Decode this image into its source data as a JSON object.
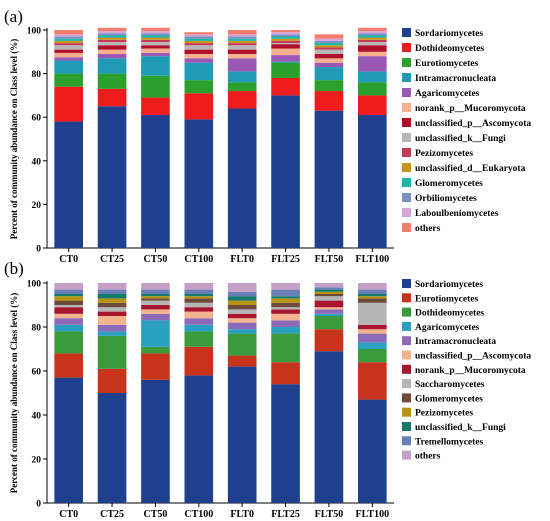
{
  "chart_data": [
    {
      "type": "bar",
      "stacked": true,
      "panel_label": "(a)",
      "ylabel": "Percent of community abundance on Class level (%)",
      "ylim": [
        0,
        100
      ],
      "yticks": [
        "0",
        "20",
        "40",
        "60",
        "80",
        "100"
      ],
      "categories": [
        "CT0",
        "CT25",
        "CT50",
        "CT100",
        "FLT0",
        "FLT25",
        "FLT50",
        "FLT100"
      ],
      "series": [
        {
          "name": "Sordariomycetes",
          "color": "#1f3f8f",
          "values": [
            58,
            65,
            61,
            59,
            64,
            70,
            63,
            61
          ]
        },
        {
          "name": "Dothideomycetes",
          "color": "#ee1c1c",
          "values": [
            16,
            8,
            8,
            12,
            8,
            8,
            9,
            9
          ]
        },
        {
          "name": "Eurotiomycetes",
          "color": "#2ca02c",
          "values": [
            6,
            7,
            10,
            6,
            4,
            7,
            5,
            6
          ]
        },
        {
          "name": "Intramacronucleata",
          "color": "#1f9bb5",
          "values": [
            6,
            7,
            9,
            8,
            5,
            0.5,
            6,
            5
          ]
        },
        {
          "name": "Agaricomycetes",
          "color": "#9b59b6",
          "values": [
            1.5,
            2,
            1.5,
            2,
            6,
            3,
            2,
            7
          ]
        },
        {
          "name": "norank_p__Mucoromycota",
          "color": "#f5b08f",
          "values": [
            2,
            2,
            2,
            2,
            2,
            3,
            2,
            2
          ]
        },
        {
          "name": "unclassified_p__Ascomycota",
          "color": "#b0102b",
          "values": [
            1.5,
            2,
            1.5,
            2,
            2,
            2,
            2,
            3
          ]
        },
        {
          "name": "unclassified_k__Fungi",
          "color": "#b7b7b7",
          "values": [
            2,
            1.5,
            1.5,
            2,
            2,
            0.5,
            2,
            1.5
          ]
        },
        {
          "name": "Pezizomycetes",
          "color": "#c53a5a",
          "values": [
            1,
            1,
            1,
            1,
            1,
            1,
            1,
            1
          ]
        },
        {
          "name": "unclassified_d__Eukaryota",
          "color": "#c9941c",
          "values": [
            1,
            1,
            1,
            1,
            1,
            1,
            1,
            1
          ]
        },
        {
          "name": "Glomeromycetes",
          "color": "#17b8a6",
          "values": [
            1,
            1,
            1,
            1,
            1,
            1,
            1,
            1
          ]
        },
        {
          "name": "Orbiliomycetes",
          "color": "#7d8fc4",
          "values": [
            1,
            1,
            1,
            1,
            1,
            1,
            1,
            1
          ]
        },
        {
          "name": "Laboulbeniomycetes",
          "color": "#d3a6d6",
          "values": [
            1,
            1,
            1,
            1,
            1,
            1,
            1,
            1
          ]
        },
        {
          "name": "others",
          "color": "#f47c6c",
          "values": [
            2,
            1.5,
            1.5,
            1,
            2,
            1,
            2,
            1.5
          ]
        }
      ]
    },
    {
      "type": "bar",
      "stacked": true,
      "panel_label": "(b)",
      "ylabel": "Percent of community abundance on Class level (%)",
      "ylim": [
        0,
        100
      ],
      "yticks": [
        "0",
        "20",
        "40",
        "60",
        "80",
        "100"
      ],
      "categories": [
        "CT0",
        "CT25",
        "CT50",
        "CT100",
        "FLT0",
        "FLT25",
        "FLT50",
        "FLT100"
      ],
      "series": [
        {
          "name": "Sordariomycetes",
          "color": "#1f3f8f",
          "values": [
            57,
            50,
            56,
            58,
            62,
            54,
            69,
            47
          ]
        },
        {
          "name": "Eurotiomycetes",
          "color": "#c8331c",
          "values": [
            11,
            11,
            12,
            13,
            5,
            10,
            10,
            17
          ]
        },
        {
          "name": "Dothideomycetes",
          "color": "#3b9a3b",
          "values": [
            10,
            15,
            3,
            7,
            10,
            13,
            6,
            6
          ]
        },
        {
          "name": "Agaricomycetes",
          "color": "#2a9fc0",
          "values": [
            3,
            2,
            12,
            3,
            2,
            3,
            1,
            3
          ]
        },
        {
          "name": "Intramacronucleata",
          "color": "#8e6bb8",
          "values": [
            3,
            3,
            3,
            3,
            3,
            3,
            2,
            4
          ]
        },
        {
          "name": "unclassified_p__Ascomycota",
          "color": "#f2b48e",
          "values": [
            2,
            4,
            2,
            3,
            2,
            3,
            1,
            2
          ]
        },
        {
          "name": "norank_p__Mucoromycota",
          "color": "#a8152e",
          "values": [
            3,
            2,
            2,
            2,
            2,
            2,
            3,
            2
          ]
        },
        {
          "name": "Saccharomycetes",
          "color": "#b5b5b5",
          "values": [
            1,
            2,
            2,
            2,
            2,
            1,
            2,
            10
          ]
        },
        {
          "name": "Glomeromycetes",
          "color": "#6e4a3a",
          "values": [
            2,
            2,
            1,
            2,
            2,
            2,
            1,
            2
          ]
        },
        {
          "name": "Pezizomycetes",
          "color": "#b89414",
          "values": [
            2,
            2,
            1,
            1,
            2,
            2,
            1,
            1
          ]
        },
        {
          "name": "unclassified_k__Fungi",
          "color": "#157a6a",
          "values": [
            1,
            2,
            1,
            1,
            2,
            1,
            1,
            1
          ]
        },
        {
          "name": "Tremellomycetes",
          "color": "#6a7fb8",
          "values": [
            2,
            2,
            2,
            2,
            2,
            3,
            1,
            2
          ]
        },
        {
          "name": "others",
          "color": "#c4a0c8",
          "values": [
            3,
            3,
            3,
            3,
            4,
            3,
            2,
            3
          ]
        }
      ]
    }
  ]
}
